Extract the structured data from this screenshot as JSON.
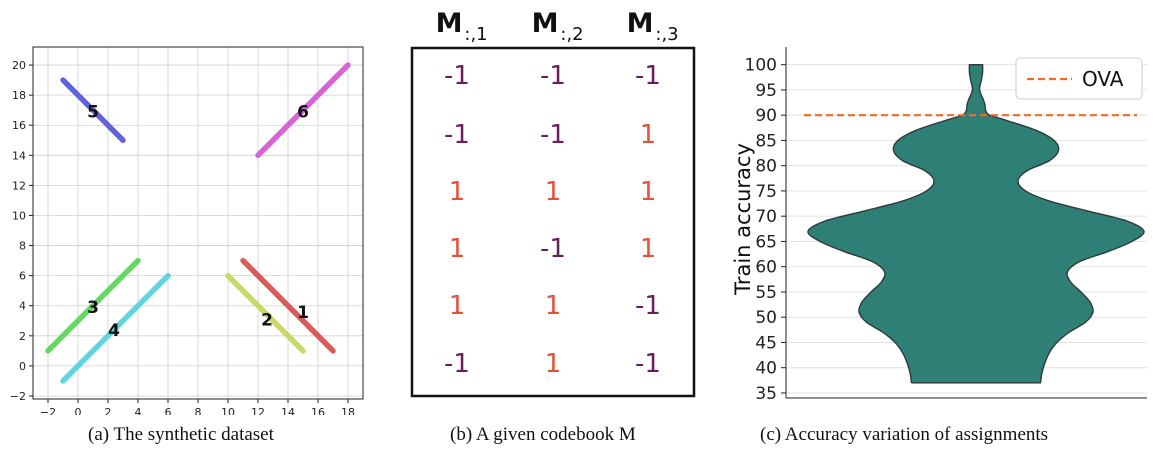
{
  "figure": {
    "captions": {
      "a": "(a) The synthetic dataset",
      "b": "(b) A given codebook M",
      "c": "(c) Accuracy variation of assignments"
    }
  },
  "chart_data": [
    {
      "type": "scatter",
      "title": "",
      "xlabel": "",
      "ylabel": "",
      "xlim": [
        -3,
        19
      ],
      "ylim": [
        -2.2,
        21.2
      ],
      "x_ticks": [
        -2,
        0,
        2,
        4,
        6,
        8,
        10,
        12,
        14,
        16,
        18
      ],
      "y_ticks": [
        -2,
        0,
        2,
        4,
        6,
        8,
        10,
        12,
        14,
        16,
        18,
        20
      ],
      "grid": true,
      "series": [
        {
          "label": "1",
          "color": "#d9534f",
          "x": [
            11,
            17
          ],
          "y": [
            7,
            1
          ],
          "label_at": [
            15,
            3.6
          ]
        },
        {
          "label": "2",
          "color": "#c8d65a",
          "x": [
            10,
            15
          ],
          "y": [
            6,
            1
          ],
          "label_at": [
            12.6,
            3.1
          ]
        },
        {
          "label": "3",
          "color": "#5cd65c",
          "x": [
            -2,
            4
          ],
          "y": [
            1,
            7
          ],
          "label_at": [
            1,
            3.9
          ]
        },
        {
          "label": "4",
          "color": "#5bd3d9",
          "x": [
            -1,
            6
          ],
          "y": [
            -1,
            6
          ],
          "label_at": [
            2.4,
            2.4
          ]
        },
        {
          "label": "5",
          "color": "#5b5bd6",
          "x": [
            -1,
            3
          ],
          "y": [
            19,
            15
          ],
          "label_at": [
            1,
            16.9
          ]
        },
        {
          "label": "6",
          "color": "#d65bd6",
          "x": [
            12,
            18
          ],
          "y": [
            14,
            20
          ],
          "label_at": [
            15,
            16.9
          ]
        }
      ]
    },
    {
      "type": "table",
      "headers": [
        "M",
        "M",
        "M"
      ],
      "header_subscripts": [
        ":,1",
        ":,2",
        ":,3"
      ],
      "rows": [
        [
          "-1",
          "-1",
          "-1"
        ],
        [
          "-1",
          "-1",
          "1"
        ],
        [
          "1",
          "1",
          "1"
        ],
        [
          "1",
          "-1",
          "1"
        ],
        [
          "1",
          "1",
          "-1"
        ],
        [
          "-1",
          "1",
          "-1"
        ]
      ],
      "colors": {
        "positive": "#e0533a",
        "negative": "#6b1f5a"
      }
    },
    {
      "type": "violin",
      "title": "",
      "xlabel": "",
      "ylabel": "Train accuracy",
      "ylim": [
        34,
        103.5
      ],
      "y_ticks": [
        35,
        40,
        45,
        50,
        55,
        60,
        65,
        70,
        75,
        80,
        85,
        90,
        95,
        100
      ],
      "grid": "horizontal",
      "violin": {
        "color": "#2e8077",
        "edge_color": "#2d3a3a",
        "min": 37,
        "max": 100,
        "density_halfwidth": [
          {
            "y": 37,
            "w": 0.215
          },
          {
            "y": 39,
            "w": 0.22
          },
          {
            "y": 41,
            "w": 0.23
          },
          {
            "y": 43,
            "w": 0.245
          },
          {
            "y": 45,
            "w": 0.27
          },
          {
            "y": 47,
            "w": 0.31
          },
          {
            "y": 49,
            "w": 0.365
          },
          {
            "y": 51,
            "w": 0.39
          },
          {
            "y": 53,
            "w": 0.38
          },
          {
            "y": 55,
            "w": 0.35
          },
          {
            "y": 57,
            "w": 0.315
          },
          {
            "y": 59,
            "w": 0.305
          },
          {
            "y": 61,
            "w": 0.345
          },
          {
            "y": 63,
            "w": 0.44
          },
          {
            "y": 65,
            "w": 0.52
          },
          {
            "y": 67,
            "w": 0.56
          },
          {
            "y": 69,
            "w": 0.505
          },
          {
            "y": 71,
            "w": 0.375
          },
          {
            "y": 73,
            "w": 0.245
          },
          {
            "y": 75,
            "w": 0.165
          },
          {
            "y": 77,
            "w": 0.14
          },
          {
            "y": 79,
            "w": 0.17
          },
          {
            "y": 81,
            "w": 0.245
          },
          {
            "y": 83,
            "w": 0.275
          },
          {
            "y": 85,
            "w": 0.26
          },
          {
            "y": 87,
            "w": 0.2
          },
          {
            "y": 89,
            "w": 0.1
          },
          {
            "y": 90,
            "w": 0.045
          },
          {
            "y": 91,
            "w": 0.032
          },
          {
            "y": 92,
            "w": 0.03
          },
          {
            "y": 93,
            "w": 0.025
          },
          {
            "y": 95,
            "w": 0.012
          },
          {
            "y": 97,
            "w": 0.018
          },
          {
            "y": 98.5,
            "w": 0.022
          },
          {
            "y": 100,
            "w": 0.022
          }
        ]
      },
      "reference_line": {
        "label": "OVA",
        "value": 90,
        "color": "#f06a28"
      },
      "legend": {
        "position": "top-right",
        "entries": [
          "OVA"
        ]
      }
    }
  ]
}
